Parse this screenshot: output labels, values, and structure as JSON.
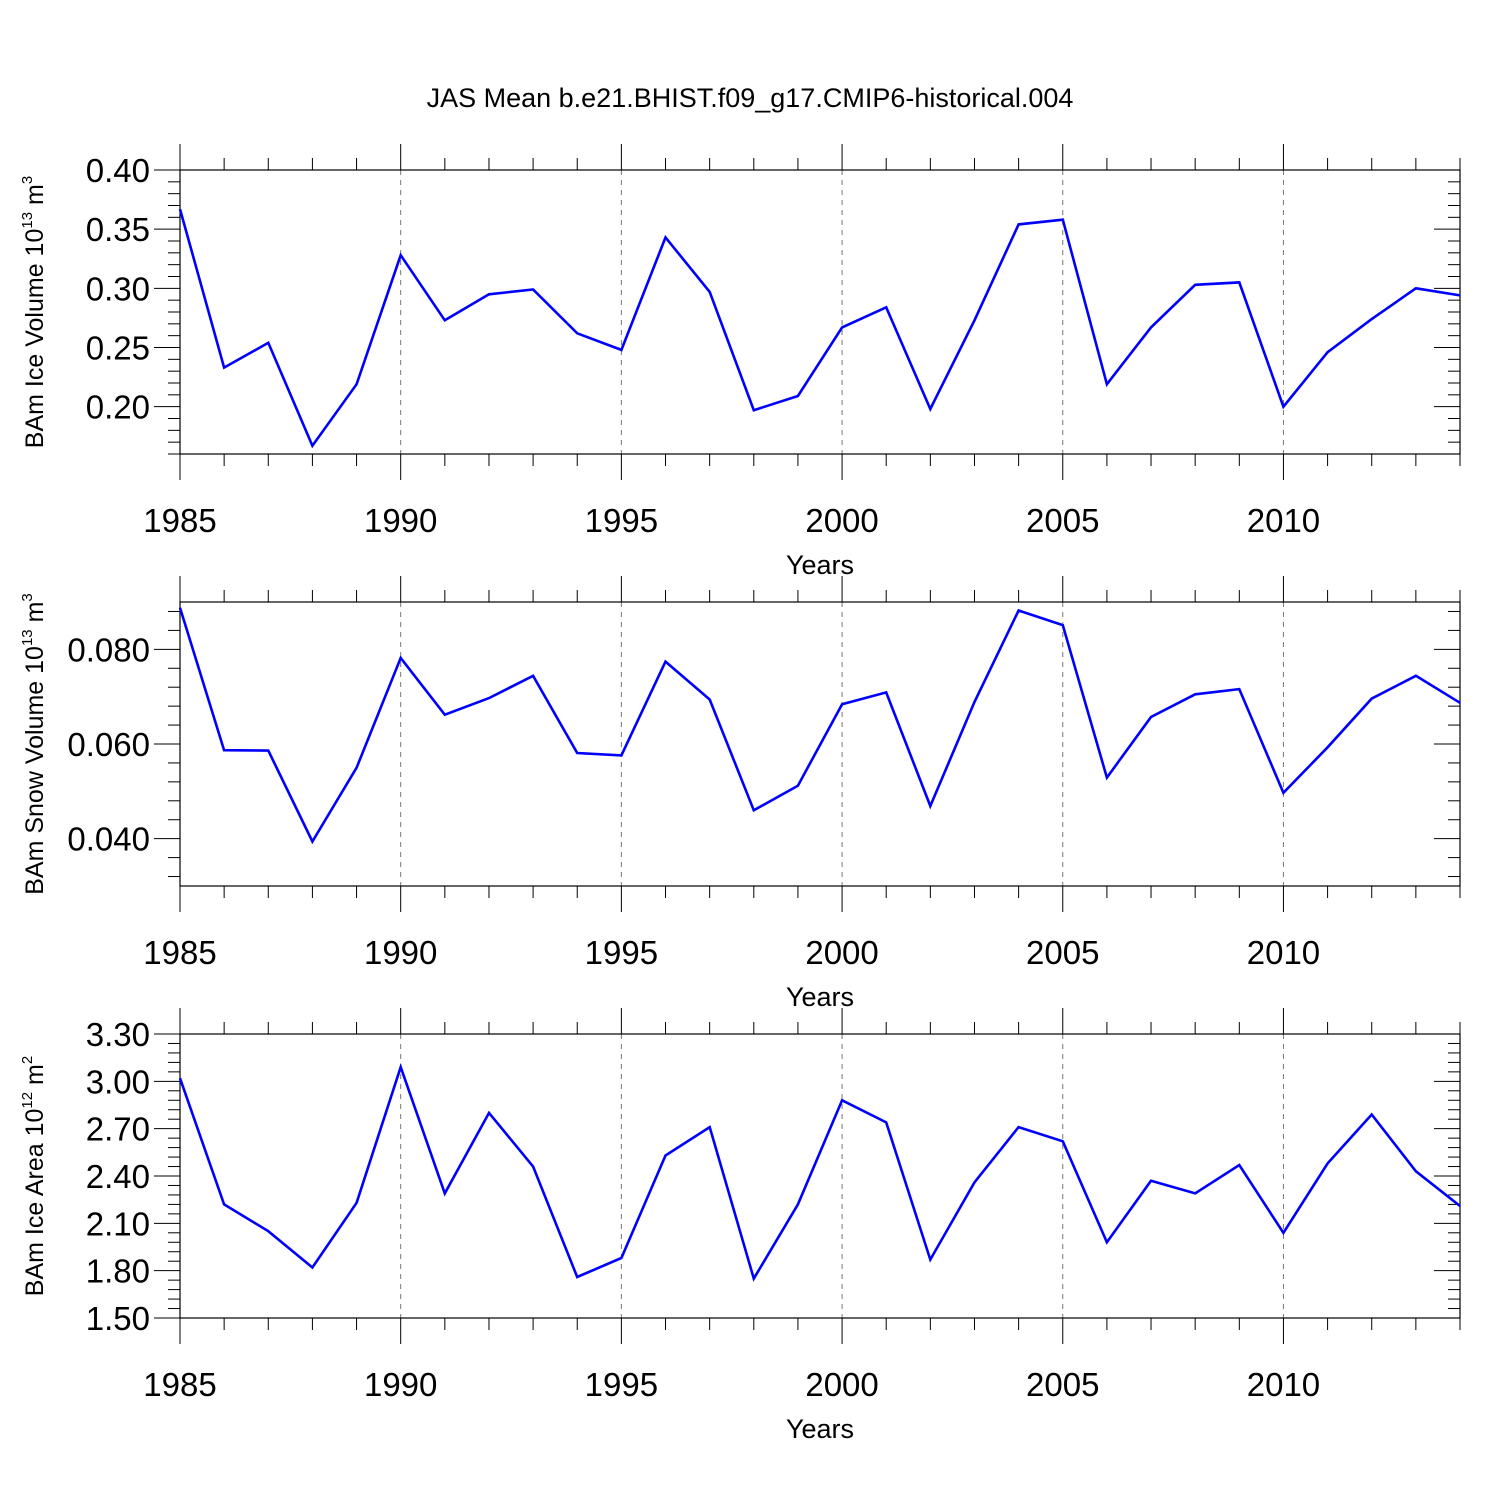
{
  "title": "JAS Mean b.e21.BHIST.f09_g17.CMIP6-historical.004",
  "chart_data": [
    {
      "type": "line",
      "ylabel_main": "BAm Ice Volume 10",
      "ylabel_exp": "13",
      "ylabel_unit": " m",
      "ylabel_unit_exp": "3",
      "xlabel": "Years",
      "xlim": [
        1985,
        2014
      ],
      "ylim": [
        0.16,
        0.4
      ],
      "yticks": [
        0.2,
        0.25,
        0.3,
        0.35,
        0.4
      ],
      "ytick_labels": [
        "0.20",
        "0.25",
        "0.30",
        "0.35",
        "0.40"
      ],
      "xticks": [
        1985,
        1990,
        1995,
        2000,
        2005,
        2010
      ],
      "xtick_labels": [
        "1985",
        "1990",
        "1995",
        "2000",
        "2005",
        "2010"
      ],
      "series": [
        {
          "name": "BAm Ice Volume",
          "color": "#0000ff",
          "x": [
            1985,
            1986,
            1987,
            1988,
            1989,
            1990,
            1991,
            1992,
            1993,
            1994,
            1995,
            1996,
            1997,
            1998,
            1999,
            2000,
            2001,
            2002,
            2003,
            2004,
            2005,
            2006,
            2007,
            2008,
            2009,
            2010,
            2011,
            2012,
            2013,
            2014
          ],
          "values": [
            0.367,
            0.233,
            0.254,
            0.167,
            0.219,
            0.328,
            0.273,
            0.295,
            0.299,
            0.262,
            0.248,
            0.343,
            0.297,
            0.197,
            0.209,
            0.267,
            0.284,
            0.198,
            0.273,
            0.354,
            0.358,
            0.219,
            0.267,
            0.303,
            0.305,
            0.2,
            0.246,
            0.274,
            0.3,
            0.294
          ]
        }
      ]
    },
    {
      "type": "line",
      "ylabel_main": "BAm Snow Volume 10",
      "ylabel_exp": "13",
      "ylabel_unit": " m",
      "ylabel_unit_exp": "3",
      "xlabel": "Years",
      "xlim": [
        1985,
        2014
      ],
      "ylim": [
        0.03,
        0.09
      ],
      "yticks": [
        0.04,
        0.06,
        0.08
      ],
      "ytick_labels": [
        "0.040",
        "0.060",
        "0.080"
      ],
      "xticks": [
        1985,
        1990,
        1995,
        2000,
        2005,
        2010
      ],
      "xtick_labels": [
        "1985",
        "1990",
        "1995",
        "2000",
        "2005",
        "2010"
      ],
      "series": [
        {
          "name": "BAm Snow Volume",
          "color": "#0000ff",
          "x": [
            1985,
            1986,
            1987,
            1988,
            1989,
            1990,
            1991,
            1992,
            1993,
            1994,
            1995,
            1996,
            1997,
            1998,
            1999,
            2000,
            2001,
            2002,
            2003,
            2004,
            2005,
            2006,
            2007,
            2008,
            2009,
            2010,
            2011,
            2012,
            2013,
            2014
          ],
          "values": [
            0.0888,
            0.0587,
            0.0586,
            0.0394,
            0.055,
            0.0782,
            0.0662,
            0.0697,
            0.0744,
            0.0581,
            0.0576,
            0.0774,
            0.0694,
            0.046,
            0.0512,
            0.0684,
            0.0709,
            0.0469,
            0.0689,
            0.0882,
            0.0851,
            0.0529,
            0.0657,
            0.0705,
            0.0716,
            0.0497,
            0.0593,
            0.0696,
            0.0744,
            0.0687
          ]
        }
      ]
    },
    {
      "type": "line",
      "ylabel_main": "BAm Ice Area 10",
      "ylabel_exp": "12",
      "ylabel_unit": " m",
      "ylabel_unit_exp": "2",
      "xlabel": "Years",
      "xlim": [
        1985,
        2014
      ],
      "ylim": [
        1.5,
        3.3
      ],
      "yticks": [
        1.5,
        1.8,
        2.1,
        2.4,
        2.7,
        3.0,
        3.3
      ],
      "ytick_labels": [
        "1.50",
        "1.80",
        "2.10",
        "2.40",
        "2.70",
        "3.00",
        "3.30"
      ],
      "xticks": [
        1985,
        1990,
        1995,
        2000,
        2005,
        2010
      ],
      "xtick_labels": [
        "1985",
        "1990",
        "1995",
        "2000",
        "2005",
        "2010"
      ],
      "series": [
        {
          "name": "BAm Ice Area",
          "color": "#0000ff",
          "x": [
            1985,
            1986,
            1987,
            1988,
            1989,
            1990,
            1991,
            1992,
            1993,
            1994,
            1995,
            1996,
            1997,
            1998,
            1999,
            2000,
            2001,
            2002,
            2003,
            2004,
            2005,
            2006,
            2007,
            2008,
            2009,
            2010,
            2011,
            2012,
            2013,
            2014
          ],
          "values": [
            3.02,
            2.22,
            2.05,
            1.82,
            2.23,
            3.09,
            2.29,
            2.8,
            2.46,
            1.76,
            1.88,
            2.53,
            2.71,
            1.75,
            2.22,
            2.88,
            2.74,
            1.87,
            2.36,
            2.71,
            2.62,
            1.98,
            2.37,
            2.29,
            2.47,
            2.04,
            2.48,
            2.79,
            2.43,
            2.21
          ]
        }
      ]
    }
  ]
}
